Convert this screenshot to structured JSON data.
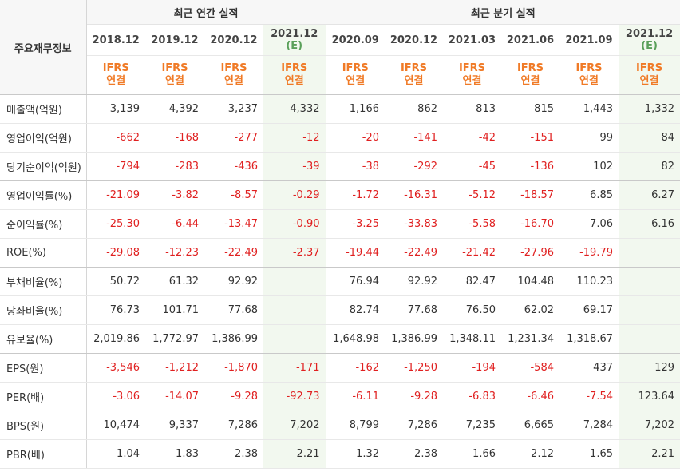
{
  "table": {
    "corner_label": "주요재무정보",
    "group_annual": "최근 연간 실적",
    "group_quarter": "최근 분기 실적",
    "periods": [
      {
        "label": "2018.12",
        "est": ""
      },
      {
        "label": "2019.12",
        "est": ""
      },
      {
        "label": "2020.12",
        "est": ""
      },
      {
        "label": "2021.12",
        "est": "(E)"
      },
      {
        "label": "2020.09",
        "est": ""
      },
      {
        "label": "2020.12",
        "est": ""
      },
      {
        "label": "2021.03",
        "est": ""
      },
      {
        "label": "2021.06",
        "est": ""
      },
      {
        "label": "2021.09",
        "est": ""
      },
      {
        "label": "2021.12",
        "est": "(E)"
      }
    ],
    "ifrs_line1": "IFRS",
    "ifrs_line2": "연결",
    "rows": [
      {
        "label": "매출액(억원)",
        "values": [
          "3,139",
          "4,392",
          "3,237",
          "4,332",
          "1,166",
          "862",
          "813",
          "815",
          "1,443",
          "1,332"
        ]
      },
      {
        "label": "영업이익(억원)",
        "values": [
          "-662",
          "-168",
          "-277",
          "-12",
          "-20",
          "-141",
          "-42",
          "-151",
          "99",
          "84"
        ]
      },
      {
        "label": "당기순이익(억원)",
        "values": [
          "-794",
          "-283",
          "-436",
          "-39",
          "-38",
          "-292",
          "-45",
          "-136",
          "102",
          "82"
        ]
      },
      {
        "label": "영업이익률(%)",
        "values": [
          "-21.09",
          "-3.82",
          "-8.57",
          "-0.29",
          "-1.72",
          "-16.31",
          "-5.12",
          "-18.57",
          "6.85",
          "6.27"
        ]
      },
      {
        "label": "순이익률(%)",
        "values": [
          "-25.30",
          "-6.44",
          "-13.47",
          "-0.90",
          "-3.25",
          "-33.83",
          "-5.58",
          "-16.70",
          "7.06",
          "6.16"
        ]
      },
      {
        "label": "ROE(%)",
        "values": [
          "-29.08",
          "-12.23",
          "-22.49",
          "-2.37",
          "-19.44",
          "-22.49",
          "-21.42",
          "-27.96",
          "-19.79",
          ""
        ]
      },
      {
        "label": "부채비율(%)",
        "values": [
          "50.72",
          "61.32",
          "92.92",
          "",
          "76.94",
          "92.92",
          "82.47",
          "104.48",
          "110.23",
          ""
        ]
      },
      {
        "label": "당좌비율(%)",
        "values": [
          "76.73",
          "101.71",
          "77.68",
          "",
          "82.74",
          "77.68",
          "76.50",
          "62.02",
          "69.17",
          ""
        ]
      },
      {
        "label": "유보율(%)",
        "values": [
          "2,019.86",
          "1,772.97",
          "1,386.99",
          "",
          "1,648.98",
          "1,386.99",
          "1,348.11",
          "1,231.34",
          "1,318.67",
          ""
        ]
      },
      {
        "label": "EPS(원)",
        "values": [
          "-3,546",
          "-1,212",
          "-1,870",
          "-171",
          "-162",
          "-1,250",
          "-194",
          "-584",
          "437",
          "129"
        ]
      },
      {
        "label": "PER(배)",
        "values": [
          "-3.06",
          "-14.07",
          "-9.28",
          "-92.73",
          "-6.11",
          "-9.28",
          "-6.83",
          "-6.46",
          "-7.54",
          "123.64"
        ]
      },
      {
        "label": "BPS(원)",
        "values": [
          "10,474",
          "9,337",
          "7,286",
          "7,202",
          "8,799",
          "7,286",
          "7,235",
          "6,665",
          "7,284",
          "7,202"
        ]
      },
      {
        "label": "PBR(배)",
        "values": [
          "1.04",
          "1.83",
          "2.38",
          "2.21",
          "1.32",
          "2.38",
          "1.66",
          "2.12",
          "1.65",
          "2.21"
        ]
      }
    ]
  },
  "colors": {
    "negative": "#e02020",
    "ifrs": "#f07a26",
    "estimate_bg": "#f2f8ef",
    "estimate_text": "#5aa05a"
  }
}
